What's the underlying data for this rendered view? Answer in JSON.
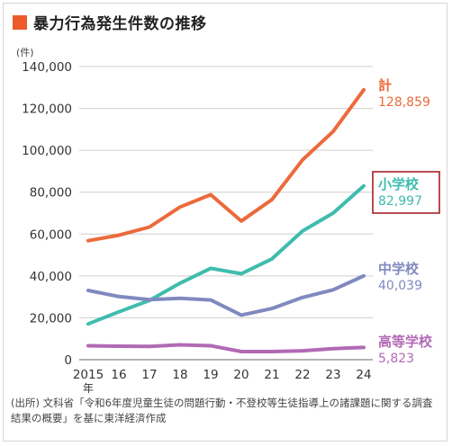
{
  "title": "暴力行為発生件数の推移",
  "source": "(出所) 文科省「令和6年度児童生徒の問題行動・不登校等生徒指導上の諸課題に関する調査結果の概要」を基に東洋経済作成",
  "colors": {
    "accent": "#ec5a2a",
    "highlight_box": "#a31f24"
  },
  "chart_data": {
    "type": "line",
    "ylabel": "(件)",
    "ylim": [
      0,
      140000
    ],
    "yticks": [
      "140,000",
      "120,000",
      "100,000",
      "80,000",
      "60,000",
      "40,000",
      "20,000",
      "0"
    ],
    "x": [
      2015,
      2016,
      2017,
      2018,
      2019,
      2020,
      2021,
      2022,
      2023,
      2024
    ],
    "x_tick_labels": [
      "2015",
      "16",
      "17",
      "18",
      "19",
      "20",
      "21",
      "22",
      "23",
      "24"
    ],
    "x_unit": "年",
    "grid": true,
    "series": [
      {
        "name": "計",
        "color": "#ec6a3c",
        "final_label": "128,859",
        "highlight": false,
        "values": [
          56806,
          59444,
          63325,
          72940,
          78787,
          66201,
          76441,
          95426,
          108987,
          128859
        ]
      },
      {
        "name": "小学校",
        "color": "#3fbcae",
        "final_label": "82,997",
        "highlight": true,
        "values": [
          17078,
          22841,
          28315,
          36536,
          43614,
          41056,
          48138,
          61455,
          70009,
          82997
        ]
      },
      {
        "name": "中学校",
        "color": "#8089bf",
        "final_label": "40,039",
        "highlight": false,
        "values": [
          33073,
          30148,
          28702,
          29320,
          28518,
          21293,
          24450,
          29699,
          33386,
          40039
        ]
      },
      {
        "name": "高等学校",
        "color": "#b26ab5",
        "final_label": "5,823",
        "highlight": false,
        "values": [
          6655,
          6455,
          6308,
          7084,
          6655,
          3852,
          3853,
          4272,
          5292,
          5823
        ]
      }
    ]
  }
}
